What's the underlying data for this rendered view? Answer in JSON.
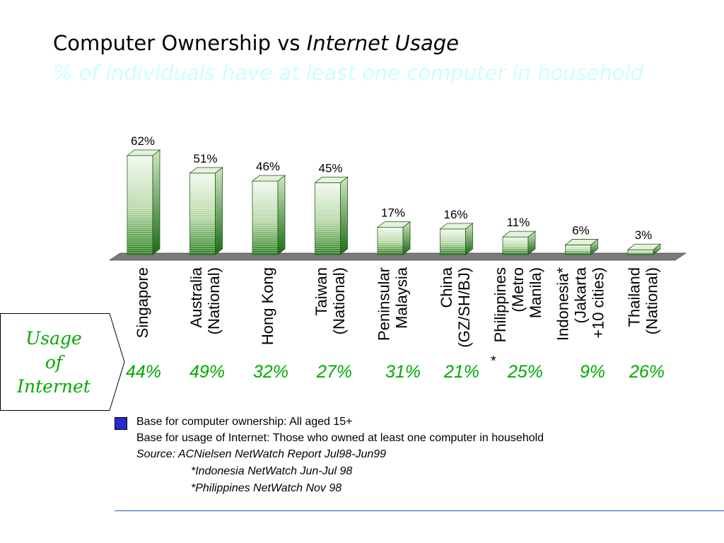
{
  "slide": {
    "title_part1": "Computer Ownership vs ",
    "title_part2": "Internet Usage",
    "subtitle": "% of individuals have at least one computer in household"
  },
  "chart_data": {
    "type": "bar",
    "categories": [
      [
        "Singapore"
      ],
      [
        "Australia",
        "(National)"
      ],
      [
        "Hong Kong"
      ],
      [
        "Taiwan",
        "(National)"
      ],
      [
        "Peninsular",
        "Malaysia"
      ],
      [
        "China",
        "(GZ/SH/BJ)"
      ],
      [
        "Philippines",
        "(Metro",
        "Manila)"
      ],
      [
        "Indonesia*",
        "(Jakarta",
        "+10 cities)"
      ],
      [
        "Thailand",
        "(National)"
      ]
    ],
    "values": [
      62,
      51,
      46,
      45,
      17,
      16,
      11,
      6,
      3
    ],
    "value_labels": [
      "62%",
      "51%",
      "46%",
      "45%",
      "17%",
      "16%",
      "11%",
      "6%",
      "3%"
    ],
    "ylim": [
      0,
      62
    ],
    "bar_color": "#3a8a2a"
  },
  "usage": {
    "label": [
      "Usage",
      "of",
      "Internet"
    ],
    "values": [
      "44%",
      "49%",
      "32%",
      "27%",
      "31%",
      "21%",
      "25%",
      "9%",
      "26%"
    ],
    "asterisk": "*",
    "color": "#00aa00"
  },
  "notes": {
    "line1": "Base for computer ownership: All aged 15+",
    "line2": "Base for usage of Internet: Those who owned at least  one computer in household",
    "line3": "Source: ACNielsen NetWatch Report Jul98-Jun99",
    "line4": "*Indonesia NetWatch Jun-Jul 98",
    "line5": "*Philippines NetWatch Nov 98",
    "legend_color": "#2a2acc"
  }
}
